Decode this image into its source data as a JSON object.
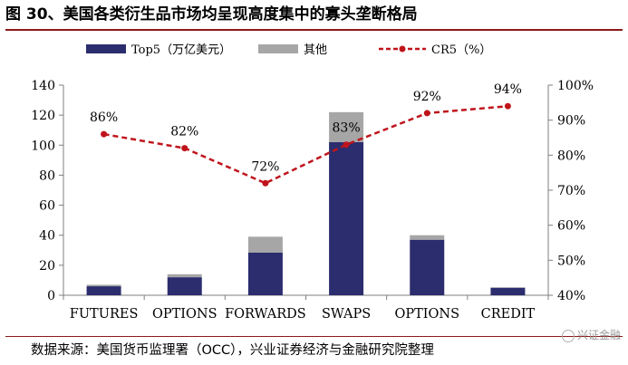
{
  "figure": {
    "title": "图 30、美国各类衍生品市场均呈现高度集中的寡头垄断格局",
    "source": "数据来源：美国货币监理署（OCC），兴业证券经济与金融研究院整理",
    "watermark": "兴证金融"
  },
  "colors": {
    "top5": "#2b2d6e",
    "other": "#a6a6a6",
    "cr5": "#c0141c",
    "axis": "#7f7f7f",
    "title_rule": "#8b1a1a"
  },
  "chart_data": {
    "type": "bar",
    "stacked": true,
    "categories": [
      "FUTURES",
      "OPTIONS",
      "FORWARDS",
      "SWAPS",
      "OPTIONS",
      "CREDIT"
    ],
    "series": [
      {
        "name": "Top5（万亿美元）",
        "type": "bar",
        "axis": "left",
        "values": [
          6,
          12,
          28.5,
          102,
          37,
          5
        ]
      },
      {
        "name": "其他",
        "type": "bar",
        "axis": "left",
        "values": [
          1,
          2,
          10.5,
          20,
          3,
          0.3
        ]
      },
      {
        "name": "CR5（%）",
        "type": "line",
        "axis": "right",
        "style": "dashed-markers",
        "values": [
          86,
          82,
          72,
          83,
          92,
          94
        ],
        "labels": [
          "86%",
          "82%",
          "72%",
          "83%",
          "92%",
          "94%"
        ]
      }
    ],
    "y_left": {
      "min": 0,
      "max": 140,
      "ticks": [
        0,
        20,
        40,
        60,
        80,
        100,
        120,
        140
      ]
    },
    "y_right": {
      "min": 40,
      "max": 100,
      "ticks": [
        40,
        50,
        60,
        70,
        80,
        90,
        100
      ],
      "tick_labels": [
        "40%",
        "50%",
        "60%",
        "70%",
        "80%",
        "90%",
        "100%"
      ]
    },
    "legend_position": "top",
    "grid": false
  }
}
